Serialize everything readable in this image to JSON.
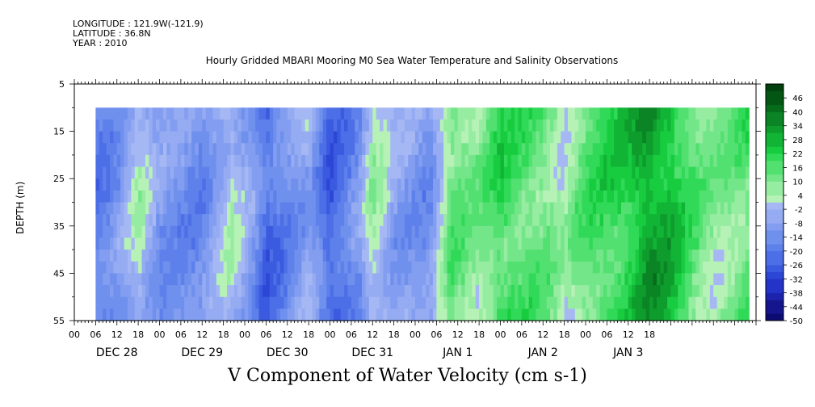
{
  "header": {
    "longitude": "LONGITUDE : 121.9W(-121.9)",
    "latitude": "LATITUDE : 36.8N",
    "year": "YEAR : 2010",
    "title": "Hourly Gridded MBARI Mooring M0 Sea Water Temperature and Salinity Observations"
  },
  "bottom_title": "V Component of Water Velocity (cm s-1)",
  "chart_data": {
    "type": "heatmap",
    "title": "Hourly Gridded MBARI Mooring M0 Sea Water Temperature and Salinity Observations",
    "xlabel": "",
    "ylabel": "DEPTH (m)",
    "variable": "V Component of Water Velocity (cm s-1)",
    "x_hour_ticks": [
      "00",
      "06",
      "12",
      "18",
      "00",
      "06",
      "12",
      "18",
      "00",
      "06",
      "12",
      "18",
      "00",
      "06",
      "12",
      "18",
      "00",
      "06",
      "12",
      "18",
      "00",
      "06",
      "12",
      "18",
      "00",
      "06",
      "12",
      "18"
    ],
    "x_day_labels": [
      "DEC 28",
      "DEC 29",
      "DEC 30",
      "DEC 31",
      "JAN  1",
      "JAN  2",
      "JAN  3"
    ],
    "y_ticks": [
      "5",
      "15",
      "25",
      "35",
      "45",
      "55"
    ],
    "ylim": [
      55,
      5
    ],
    "data_depth_range_m": [
      10,
      55
    ],
    "data_time_start": "DEC 28 06",
    "colorbar_labels": [
      "46",
      "40",
      "34",
      "28",
      "22",
      "16",
      "10",
      "4",
      "-2",
      "-8",
      "-14",
      "-20",
      "-26",
      "-32",
      "-38",
      "-44",
      "-50"
    ],
    "colorbar_range": [
      -50,
      52
    ],
    "colorbar_step": 3,
    "time_profile": [
      {
        "hour": 6,
        "v": -18
      },
      {
        "hour": 12,
        "v": -12
      },
      {
        "hour": 18,
        "v": 3
      },
      {
        "hour": 24,
        "v": -10
      },
      {
        "hour": 36,
        "v": -14
      },
      {
        "hour": 44,
        "v": 2
      },
      {
        "hour": 50,
        "v": -8
      },
      {
        "hour": 54,
        "v": -22
      },
      {
        "hour": 60,
        "v": -14
      },
      {
        "hour": 66,
        "v": -5
      },
      {
        "hour": 72,
        "v": -24
      },
      {
        "hour": 80,
        "v": -12
      },
      {
        "hour": 84,
        "v": 6
      },
      {
        "hour": 90,
        "v": -6
      },
      {
        "hour": 100,
        "v": -12
      },
      {
        "hour": 106,
        "v": 14
      },
      {
        "hour": 114,
        "v": 10
      },
      {
        "hour": 120,
        "v": 20
      },
      {
        "hour": 132,
        "v": 14
      },
      {
        "hour": 138,
        "v": 4
      },
      {
        "hour": 144,
        "v": 16
      },
      {
        "hour": 156,
        "v": 24
      },
      {
        "hour": 162,
        "v": 34
      },
      {
        "hour": 168,
        "v": 28
      },
      {
        "hour": 174,
        "v": 16
      },
      {
        "hour": 180,
        "v": 8
      },
      {
        "hour": 186,
        "v": 12
      },
      {
        "hour": 190,
        "v": 16
      }
    ]
  }
}
